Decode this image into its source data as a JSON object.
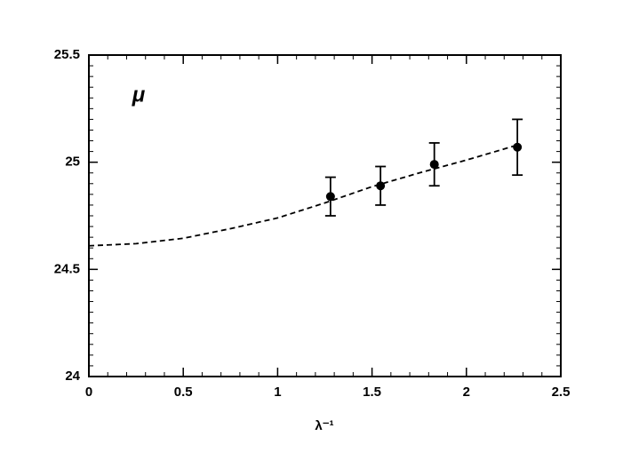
{
  "chart_data": {
    "type": "scatter",
    "annotation": "μ",
    "x_label": "λ⁻¹",
    "xlim": [
      0,
      2.5
    ],
    "xticks": [
      0,
      0.5,
      1,
      1.5,
      2,
      2.5
    ],
    "ylim": [
      24,
      25.5
    ],
    "yticks": [
      24,
      24.5,
      25,
      25.5
    ],
    "points": {
      "color": "#000000",
      "x": [
        1.28,
        1.545,
        1.83,
        2.27
      ],
      "values": [
        24.84,
        24.89,
        24.99,
        25.07
      ],
      "errors": [
        0.09,
        0.09,
        0.1,
        0.13
      ]
    },
    "fit": {
      "color": "#000000",
      "dashed": true,
      "x": [
        0,
        0.25,
        0.5,
        0.75,
        1,
        1.25,
        1.5,
        1.75,
        2,
        2.27
      ],
      "values": [
        24.61,
        24.62,
        24.645,
        24.69,
        24.74,
        24.81,
        24.886,
        24.95,
        25.01,
        25.08
      ]
    }
  }
}
